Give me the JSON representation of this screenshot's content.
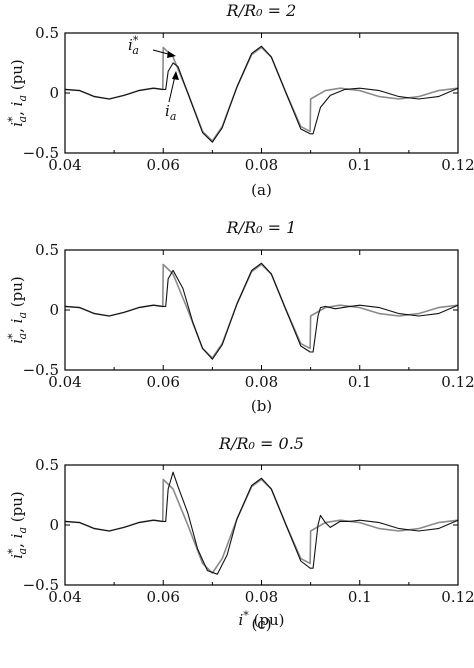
{
  "chart_data": [
    {
      "type": "line",
      "title": "R/R₀ = 2",
      "caption": "(a)",
      "ylabel": "i*a, ia (pu)",
      "xlabel": "",
      "xlim": [
        0.04,
        0.12
      ],
      "ylim": [
        -0.5,
        0.5
      ],
      "xticks": [
        "0.04",
        "0.06",
        "0.08",
        "0.1",
        "0.12"
      ],
      "yticks": [
        "0.5",
        "0",
        "−0.5"
      ],
      "annotations": [
        "i*a",
        "ia"
      ],
      "series": [
        {
          "name": "i*a",
          "color": "#8a8a8a",
          "width": 1.6,
          "x": [
            0.04,
            0.043,
            0.046,
            0.049,
            0.052,
            0.055,
            0.058,
            0.0599,
            0.06,
            0.062,
            0.065,
            0.068,
            0.07,
            0.072,
            0.075,
            0.078,
            0.08,
            0.082,
            0.085,
            0.088,
            0.0899,
            0.09,
            0.093,
            0.096,
            0.1,
            0.104,
            0.108,
            0.112,
            0.116,
            0.12
          ],
          "values": [
            0.03,
            0.02,
            -0.03,
            -0.05,
            -0.02,
            0.02,
            0.04,
            0.03,
            0.38,
            0.3,
            0.0,
            -0.32,
            -0.4,
            -0.28,
            0.05,
            0.32,
            0.38,
            0.3,
            0.0,
            -0.28,
            -0.32,
            -0.05,
            0.02,
            0.04,
            0.02,
            -0.03,
            -0.05,
            -0.03,
            0.02,
            0.04
          ]
        },
        {
          "name": "ia",
          "color": "#111111",
          "width": 1.1,
          "x": [
            0.04,
            0.043,
            0.046,
            0.049,
            0.052,
            0.055,
            0.058,
            0.0599,
            0.0605,
            0.061,
            0.062,
            0.063,
            0.065,
            0.068,
            0.07,
            0.072,
            0.075,
            0.078,
            0.08,
            0.082,
            0.085,
            0.088,
            0.0899,
            0.0905,
            0.092,
            0.094,
            0.097,
            0.1,
            0.104,
            0.108,
            0.112,
            0.116,
            0.12
          ],
          "values": [
            0.03,
            0.02,
            -0.03,
            -0.05,
            -0.02,
            0.02,
            0.04,
            0.03,
            0.03,
            0.18,
            0.25,
            0.22,
            0.0,
            -0.33,
            -0.41,
            -0.29,
            0.05,
            0.33,
            0.39,
            0.3,
            0.0,
            -0.3,
            -0.34,
            -0.34,
            -0.12,
            -0.02,
            0.03,
            0.04,
            0.02,
            -0.03,
            -0.05,
            -0.03,
            0.04
          ]
        }
      ]
    },
    {
      "type": "line",
      "title": "R/R₀ = 1",
      "caption": "(b)",
      "ylabel": "i*a, ia (pu)",
      "xlabel": "",
      "xlim": [
        0.04,
        0.12
      ],
      "ylim": [
        -0.5,
        0.5
      ],
      "xticks": [
        "0.04",
        "0.06",
        "0.08",
        "0.1",
        "0.12"
      ],
      "yticks": [
        "0.5",
        "0",
        "−0.5"
      ],
      "annotations": [],
      "series": [
        {
          "name": "i*a",
          "color": "#8a8a8a",
          "width": 1.6,
          "x": [
            0.04,
            0.043,
            0.046,
            0.049,
            0.052,
            0.055,
            0.058,
            0.0599,
            0.06,
            0.062,
            0.065,
            0.068,
            0.07,
            0.072,
            0.075,
            0.078,
            0.08,
            0.082,
            0.085,
            0.088,
            0.0899,
            0.09,
            0.093,
            0.096,
            0.1,
            0.104,
            0.108,
            0.112,
            0.116,
            0.12
          ],
          "values": [
            0.03,
            0.02,
            -0.03,
            -0.05,
            -0.02,
            0.02,
            0.04,
            0.03,
            0.38,
            0.3,
            0.0,
            -0.32,
            -0.4,
            -0.28,
            0.05,
            0.32,
            0.38,
            0.3,
            0.0,
            -0.28,
            -0.32,
            -0.05,
            0.02,
            0.04,
            0.02,
            -0.03,
            -0.05,
            -0.03,
            0.02,
            0.04
          ]
        },
        {
          "name": "ia",
          "color": "#111111",
          "width": 1.1,
          "x": [
            0.04,
            0.043,
            0.046,
            0.049,
            0.052,
            0.055,
            0.058,
            0.0599,
            0.0605,
            0.061,
            0.062,
            0.064,
            0.066,
            0.068,
            0.07,
            0.072,
            0.075,
            0.078,
            0.08,
            0.082,
            0.085,
            0.088,
            0.0899,
            0.0905,
            0.0915,
            0.092,
            0.093,
            0.095,
            0.098,
            0.1,
            0.104,
            0.108,
            0.112,
            0.116,
            0.12
          ],
          "values": [
            0.03,
            0.02,
            -0.03,
            -0.05,
            -0.02,
            0.02,
            0.04,
            0.03,
            0.03,
            0.26,
            0.33,
            0.18,
            -0.1,
            -0.32,
            -0.41,
            -0.29,
            0.05,
            0.33,
            0.39,
            0.3,
            0.0,
            -0.3,
            -0.35,
            -0.35,
            -0.05,
            0.02,
            0.03,
            0.01,
            0.03,
            0.04,
            0.02,
            -0.03,
            -0.05,
            -0.03,
            0.04
          ]
        }
      ]
    },
    {
      "type": "line",
      "title": "R/R₀ = 0.5",
      "caption": "(c)",
      "ylabel": "i*a, ia (pu)",
      "xlabel": "i* (pu)",
      "xlim": [
        0.04,
        0.12
      ],
      "ylim": [
        -0.5,
        0.5
      ],
      "xticks": [
        "0.04",
        "0.06",
        "0.08",
        "0.1",
        "0.12"
      ],
      "yticks": [
        "0.5",
        "0",
        "−0.5"
      ],
      "annotations": [],
      "series": [
        {
          "name": "i*a",
          "color": "#8a8a8a",
          "width": 1.6,
          "x": [
            0.04,
            0.043,
            0.046,
            0.049,
            0.052,
            0.055,
            0.058,
            0.0599,
            0.06,
            0.062,
            0.065,
            0.068,
            0.07,
            0.072,
            0.075,
            0.078,
            0.08,
            0.082,
            0.085,
            0.088,
            0.0899,
            0.09,
            0.093,
            0.096,
            0.1,
            0.104,
            0.108,
            0.112,
            0.116,
            0.12
          ],
          "values": [
            0.03,
            0.02,
            -0.03,
            -0.05,
            -0.02,
            0.02,
            0.04,
            0.03,
            0.38,
            0.3,
            0.0,
            -0.32,
            -0.4,
            -0.28,
            0.05,
            0.32,
            0.38,
            0.3,
            0.0,
            -0.28,
            -0.32,
            -0.05,
            0.02,
            0.04,
            0.02,
            -0.03,
            -0.05,
            -0.03,
            0.02,
            0.04
          ]
        },
        {
          "name": "ia",
          "color": "#111111",
          "width": 1.1,
          "x": [
            0.04,
            0.043,
            0.046,
            0.049,
            0.052,
            0.055,
            0.058,
            0.0599,
            0.0605,
            0.061,
            0.062,
            0.063,
            0.065,
            0.067,
            0.069,
            0.071,
            0.073,
            0.075,
            0.078,
            0.08,
            0.082,
            0.085,
            0.088,
            0.0899,
            0.0905,
            0.0915,
            0.092,
            0.093,
            0.094,
            0.096,
            0.098,
            0.1,
            0.104,
            0.108,
            0.112,
            0.116,
            0.12
          ],
          "values": [
            0.03,
            0.02,
            -0.03,
            -0.05,
            -0.02,
            0.02,
            0.04,
            0.03,
            0.03,
            0.3,
            0.44,
            0.32,
            0.1,
            -0.2,
            -0.38,
            -0.41,
            -0.25,
            0.05,
            0.33,
            0.39,
            0.3,
            0.0,
            -0.3,
            -0.36,
            -0.36,
            0.0,
            0.08,
            0.02,
            -0.02,
            0.03,
            0.03,
            0.04,
            0.02,
            -0.03,
            -0.05,
            -0.03,
            0.04
          ]
        }
      ]
    }
  ]
}
